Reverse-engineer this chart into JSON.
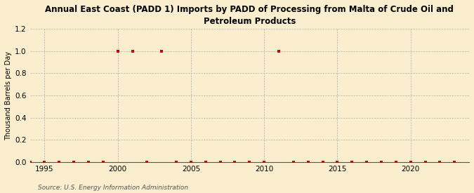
{
  "title": "Annual East Coast (PADD 1) Imports by PADD of Processing from Malta of Crude Oil and\nPetroleum Products",
  "ylabel": "Thousand Barrels per Day",
  "source": "Source: U.S. Energy Information Administration",
  "background_color": "#faeece",
  "marker_color": "#cc0000",
  "grid_color": "#aaaaaa",
  "xlim": [
    1994,
    2024
  ],
  "ylim": [
    0.0,
    1.2
  ],
  "yticks": [
    0.0,
    0.2,
    0.4,
    0.6,
    0.8,
    1.0,
    1.2
  ],
  "xticks": [
    1995,
    2000,
    2005,
    2010,
    2015,
    2020
  ],
  "years": [
    1994,
    1995,
    1996,
    1997,
    1998,
    1999,
    2000,
    2001,
    2002,
    2003,
    2004,
    2005,
    2006,
    2007,
    2008,
    2009,
    2010,
    2011,
    2012,
    2013,
    2014,
    2015,
    2016,
    2017,
    2018,
    2019,
    2020,
    2021,
    2022,
    2023
  ],
  "values": [
    0,
    0,
    0,
    0,
    0,
    0,
    1.0,
    1.0,
    0,
    1.0,
    0,
    0,
    0,
    0,
    0,
    0,
    0,
    1.0,
    0,
    0,
    0,
    0,
    0,
    0,
    0,
    0,
    0,
    0,
    0,
    0
  ]
}
